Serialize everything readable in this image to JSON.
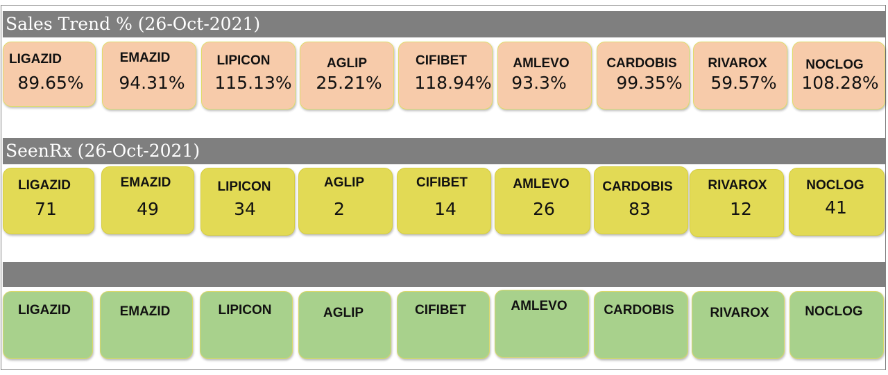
{
  "sections": [
    {
      "title": "Sales Trend % (26-Oct-2021)",
      "color": "#f7cbaa",
      "cards": [
        {
          "name": "LIGAZID",
          "value": "89.65%"
        },
        {
          "name": "EMAZID",
          "value": "94.31%"
        },
        {
          "name": "LIPICON",
          "value": "115.13%"
        },
        {
          "name": "AGLIP",
          "value": "25.21%"
        },
        {
          "name": "CIFIBET",
          "value": "118.94%"
        },
        {
          "name": "AMLEVO",
          "value": "93.3%"
        },
        {
          "name": "CARDOBIS",
          "value": "99.35%"
        },
        {
          "name": "RIVAROX",
          "value": "59.57%"
        },
        {
          "name": "NOCLOG",
          "value": "108.28%"
        }
      ]
    },
    {
      "title": "SeenRx (26-Oct-2021)",
      "color": "#e2da55",
      "cards": [
        {
          "name": "LIGAZID",
          "value": "71"
        },
        {
          "name": "EMAZID",
          "value": "49"
        },
        {
          "name": "LIPICON",
          "value": "34"
        },
        {
          "name": "AGLIP",
          "value": "2"
        },
        {
          "name": "CIFIBET",
          "value": "14"
        },
        {
          "name": "AMLEVO",
          "value": "26"
        },
        {
          "name": "CARDOBIS",
          "value": "83"
        },
        {
          "name": "RIVAROX",
          "value": "12"
        },
        {
          "name": "NOCLOG",
          "value": "41"
        }
      ]
    },
    {
      "title": "",
      "color": "#a8d18c",
      "cards": [
        {
          "name": "LIGAZID",
          "value": ""
        },
        {
          "name": "EMAZID",
          "value": ""
        },
        {
          "name": "LIPICON",
          "value": ""
        },
        {
          "name": "AGLIP",
          "value": ""
        },
        {
          "name": "CIFIBET",
          "value": ""
        },
        {
          "name": "AMLEVO",
          "value": ""
        },
        {
          "name": "CARDOBIS",
          "value": ""
        },
        {
          "name": "RIVAROX",
          "value": ""
        },
        {
          "name": "NOCLOG",
          "value": ""
        }
      ]
    }
  ]
}
